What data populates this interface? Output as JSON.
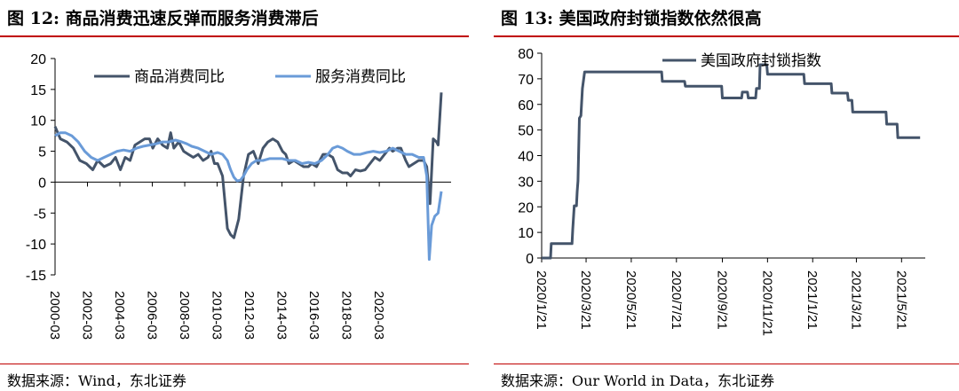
{
  "panels": [
    {
      "title": "图  12:  商品消费迅速反弹而服务消费滞后",
      "source": "数据来源：Wind，东北证券"
    },
    {
      "title": "图  13:  美国政府封锁指数依然很高",
      "source": "数据来源：Our World in Data，东北证券"
    }
  ],
  "chart_data": [
    {
      "type": "line",
      "ylim": [
        -15,
        20
      ],
      "yticks": [
        "20",
        "15",
        "10",
        "5",
        "0",
        "-5",
        "-10",
        "-15"
      ],
      "xticks": [
        "2000-03",
        "2002-03",
        "2004-03",
        "2006-03",
        "2008-03",
        "2010-03",
        "2012-03",
        "2014-03",
        "2016-03",
        "2018-03",
        "2020-03"
      ],
      "legend_position": "top",
      "series": [
        {
          "name": "商品消费同比",
          "color": "#44546a",
          "values": [
            [
              2000.17,
              9.0
            ],
            [
              2000.5,
              7.0
            ],
            [
              2000.9,
              6.5
            ],
            [
              2001.3,
              5.5
            ],
            [
              2001.7,
              3.5
            ],
            [
              2002.1,
              3.0
            ],
            [
              2002.5,
              2.0
            ],
            [
              2002.8,
              3.5
            ],
            [
              2003.2,
              2.5
            ],
            [
              2003.6,
              3.0
            ],
            [
              2003.9,
              4.0
            ],
            [
              2004.2,
              2.0
            ],
            [
              2004.5,
              4.0
            ],
            [
              2004.8,
              3.5
            ],
            [
              2005.1,
              6.0
            ],
            [
              2005.4,
              6.5
            ],
            [
              2005.7,
              7.0
            ],
            [
              2006.0,
              7.0
            ],
            [
              2006.2,
              5.5
            ],
            [
              2006.5,
              7.0
            ],
            [
              2006.8,
              6.0
            ],
            [
              2007.1,
              5.5
            ],
            [
              2007.3,
              8.0
            ],
            [
              2007.5,
              5.5
            ],
            [
              2007.8,
              6.5
            ],
            [
              2008.1,
              5.0
            ],
            [
              2008.4,
              4.5
            ],
            [
              2008.7,
              4.0
            ],
            [
              2009.0,
              4.5
            ],
            [
              2009.3,
              3.5
            ],
            [
              2009.6,
              4.0
            ],
            [
              2009.8,
              5.0
            ],
            [
              2010.0,
              3.0
            ],
            [
              2010.2,
              3.0
            ],
            [
              2010.5,
              1.0
            ],
            [
              2010.8,
              -7.5
            ],
            [
              2011.0,
              -8.5
            ],
            [
              2011.2,
              -9.0
            ],
            [
              2011.5,
              -6.0
            ],
            [
              2011.8,
              1.0
            ],
            [
              2012.1,
              4.5
            ],
            [
              2012.4,
              5.0
            ],
            [
              2012.7,
              3.0
            ],
            [
              2013.0,
              5.5
            ],
            [
              2013.3,
              6.5
            ],
            [
              2013.6,
              7.0
            ],
            [
              2013.9,
              6.5
            ],
            [
              2014.2,
              5.0
            ],
            [
              2014.4,
              4.5
            ],
            [
              2014.6,
              3.0
            ],
            [
              2014.9,
              3.5
            ],
            [
              2015.2,
              3.0
            ],
            [
              2015.5,
              2.5
            ],
            [
              2015.8,
              2.5
            ],
            [
              2016.0,
              3.0
            ],
            [
              2016.3,
              2.5
            ],
            [
              2016.5,
              3.5
            ],
            [
              2016.7,
              4.5
            ],
            [
              2017.0,
              4.5
            ],
            [
              2017.3,
              4.0
            ],
            [
              2017.6,
              2.0
            ],
            [
              2017.9,
              1.5
            ],
            [
              2018.2,
              1.5
            ],
            [
              2018.4,
              1.0
            ],
            [
              2018.7,
              2.0
            ],
            [
              2019.0,
              1.8
            ],
            [
              2019.3,
              2.0
            ],
            [
              2019.6,
              3.0
            ],
            [
              2019.9,
              4.0
            ],
            [
              2020.2,
              3.5
            ],
            [
              2020.5,
              4.5
            ],
            [
              2020.8,
              5.5
            ],
            [
              2021.0,
              5.0
            ],
            [
              2021.3,
              5.5
            ],
            [
              2021.5,
              5.5
            ],
            [
              2021.8,
              3.5
            ],
            [
              2022.0,
              2.5
            ],
            [
              2022.3,
              3.0
            ],
            [
              2022.6,
              3.5
            ],
            [
              2022.9,
              3.5
            ],
            [
              2023.1,
              2.5
            ],
            [
              2023.3,
              -3.5
            ],
            [
              2023.5,
              7.0
            ],
            [
              2023.7,
              6.5
            ],
            [
              2023.8,
              6.0
            ],
            [
              2024.0,
              14.5
            ]
          ]
        },
        {
          "name": "服务消费同比",
          "color": "#6a9bd8",
          "values": [
            [
              2000.17,
              7.5
            ],
            [
              2000.5,
              8.0
            ],
            [
              2000.8,
              8.0
            ],
            [
              2001.2,
              7.5
            ],
            [
              2001.6,
              6.5
            ],
            [
              2002.0,
              5.0
            ],
            [
              2002.4,
              4.0
            ],
            [
              2002.8,
              3.5
            ],
            [
              2003.2,
              4.0
            ],
            [
              2003.6,
              4.5
            ],
            [
              2004.0,
              5.0
            ],
            [
              2004.4,
              5.2
            ],
            [
              2004.8,
              5.0
            ],
            [
              2005.2,
              5.5
            ],
            [
              2005.6,
              5.8
            ],
            [
              2006.0,
              6.0
            ],
            [
              2006.4,
              6.2
            ],
            [
              2006.8,
              6.5
            ],
            [
              2007.2,
              6.5
            ],
            [
              2007.6,
              6.8
            ],
            [
              2008.0,
              6.5
            ],
            [
              2008.3,
              6.2
            ],
            [
              2008.6,
              5.8
            ],
            [
              2009.0,
              5.5
            ],
            [
              2009.4,
              5.0
            ],
            [
              2009.8,
              4.5
            ],
            [
              2010.2,
              4.8
            ],
            [
              2010.5,
              4.5
            ],
            [
              2010.8,
              3.5
            ],
            [
              2011.0,
              2.0
            ],
            [
              2011.2,
              0.8
            ],
            [
              2011.4,
              0.2
            ],
            [
              2011.6,
              0.3
            ],
            [
              2011.8,
              1.0
            ],
            [
              2012.0,
              2.0
            ],
            [
              2012.3,
              3.0
            ],
            [
              2012.6,
              3.5
            ],
            [
              2013.0,
              3.5
            ],
            [
              2013.4,
              3.8
            ],
            [
              2013.8,
              3.8
            ],
            [
              2014.2,
              3.8
            ],
            [
              2014.6,
              3.5
            ],
            [
              2015.0,
              3.5
            ],
            [
              2015.4,
              3.0
            ],
            [
              2015.8,
              3.2
            ],
            [
              2016.2,
              3.0
            ],
            [
              2016.6,
              3.5
            ],
            [
              2017.0,
              4.5
            ],
            [
              2017.3,
              5.5
            ],
            [
              2017.6,
              5.8
            ],
            [
              2017.9,
              5.5
            ],
            [
              2018.2,
              5.0
            ],
            [
              2018.6,
              4.5
            ],
            [
              2019.0,
              4.5
            ],
            [
              2019.4,
              4.8
            ],
            [
              2019.8,
              5.0
            ],
            [
              2020.2,
              4.8
            ],
            [
              2020.6,
              5.0
            ],
            [
              2021.0,
              5.5
            ],
            [
              2021.4,
              5.0
            ],
            [
              2021.8,
              4.5
            ],
            [
              2022.2,
              4.5
            ],
            [
              2022.6,
              4.0
            ],
            [
              2022.9,
              4.0
            ],
            [
              2023.1,
              1.0
            ],
            [
              2023.25,
              -12.5
            ],
            [
              2023.4,
              -7.0
            ],
            [
              2023.6,
              -5.5
            ],
            [
              2023.8,
              -5.0
            ],
            [
              2024.0,
              -1.5
            ]
          ]
        }
      ]
    },
    {
      "type": "line",
      "ylim": [
        0,
        80
      ],
      "yticks": [
        "80",
        "70",
        "60",
        "50",
        "40",
        "30",
        "20",
        "10",
        "0"
      ],
      "xticks": [
        "2020/1/21",
        "2020/3/21",
        "2020/5/21",
        "2020/7/21",
        "2020/9/21",
        "2020/11/21",
        "2021/1/21",
        "2021/3/21",
        "2021/5/21"
      ],
      "legend_position": "top",
      "series": [
        {
          "name": "美国政府封锁指数",
          "color": "#44546a",
          "values": [
            [
              "2020-01-21",
              0
            ],
            [
              "2020-02-02",
              0
            ],
            [
              "2020-02-03",
              5.6
            ],
            [
              "2020-03-02",
              5.6
            ],
            [
              "2020-03-03",
              11.1
            ],
            [
              "2020-03-05",
              20.4
            ],
            [
              "2020-03-08",
              20.4
            ],
            [
              "2020-03-09",
              25.9
            ],
            [
              "2020-03-10",
              30.1
            ],
            [
              "2020-03-12",
              54.6
            ],
            [
              "2020-03-14",
              55.6
            ],
            [
              "2020-03-16",
              66.2
            ],
            [
              "2020-03-19",
              72.7
            ],
            [
              "2020-07-01",
              72.7
            ],
            [
              "2020-07-02",
              69.0
            ],
            [
              "2020-08-01",
              69.0
            ],
            [
              "2020-08-02",
              67.1
            ],
            [
              "2020-09-20",
              67.1
            ],
            [
              "2020-09-21",
              62.5
            ],
            [
              "2020-10-17",
              62.5
            ],
            [
              "2020-10-18",
              64.8
            ],
            [
              "2020-10-25",
              64.8
            ],
            [
              "2020-10-26",
              62.5
            ],
            [
              "2020-11-05",
              62.5
            ],
            [
              "2020-11-06",
              66.2
            ],
            [
              "2020-11-10",
              66.2
            ],
            [
              "2020-11-11",
              75.5
            ],
            [
              "2020-11-20",
              75.5
            ],
            [
              "2020-11-21",
              71.8
            ],
            [
              "2021-01-09",
              71.8
            ],
            [
              "2021-01-10",
              68.1
            ],
            [
              "2021-02-15",
              68.1
            ],
            [
              "2021-02-16",
              64.4
            ],
            [
              "2021-03-09",
              64.4
            ],
            [
              "2021-03-10",
              61.6
            ],
            [
              "2021-03-15",
              61.6
            ],
            [
              "2021-03-16",
              57.0
            ],
            [
              "2021-04-30",
              57.0
            ],
            [
              "2021-05-01",
              52.3
            ],
            [
              "2021-05-15",
              52.3
            ],
            [
              "2021-05-16",
              47.0
            ],
            [
              "2021-06-15",
              47.0
            ]
          ]
        }
      ]
    }
  ]
}
